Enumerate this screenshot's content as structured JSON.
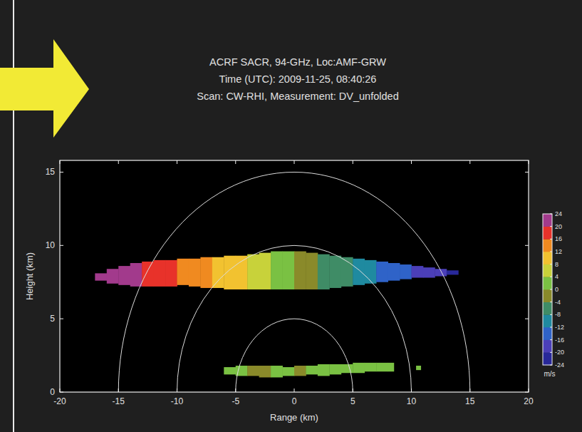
{
  "chart_data": {
    "type": "radar_rhi",
    "title_lines": [
      "ACRF SACR, 94-GHz, Loc:AMF-GRW",
      "Time (UTC): 2009-11-25, 08:40:26",
      "Scan: CW-RHI, Measurement: DV_unfolded"
    ],
    "x_label": "Range (km)",
    "y_label": "Height (km)",
    "xlim": [
      -20,
      20
    ],
    "xticks": [
      -20,
      -15,
      -10,
      -5,
      0,
      5,
      10,
      15,
      20
    ],
    "ylim": [
      0,
      15.8
    ],
    "yticks": [
      0,
      5,
      10,
      15
    ],
    "range_rings": [
      5,
      10,
      15
    ],
    "colorbar": {
      "range": [
        -24,
        24
      ],
      "ticks": [
        24,
        20,
        16,
        12,
        8,
        4,
        0,
        -4,
        -8,
        -12,
        -16,
        -20,
        -24
      ],
      "label": "m/s",
      "colors": [
        "#28289a",
        "#4b3fb8",
        "#2f63c8",
        "#1f8aa0",
        "#3f8c66",
        "#8a8a2a",
        "#7ac143",
        "#c8d23a",
        "#f2c230",
        "#f08a20",
        "#e8322a",
        "#a23a8c"
      ]
    },
    "layers": [
      {
        "edges": [
          -17,
          -16,
          -15,
          -14,
          -13,
          -12,
          -11,
          -10,
          -9,
          -8,
          -7,
          -6,
          -5,
          -4,
          -3,
          -2,
          -1,
          0,
          1,
          2,
          3,
          4,
          5,
          6,
          7,
          8,
          9,
          10,
          11,
          12,
          13,
          14
        ],
        "values": [
          22,
          21,
          21,
          20,
          19,
          18,
          17,
          15,
          14,
          13,
          11,
          9,
          8,
          6,
          5,
          2,
          1,
          -2,
          -3,
          -5,
          -6,
          -8,
          -10,
          -11,
          -13,
          -14,
          -16,
          -17,
          -19,
          -20,
          -22
        ],
        "base": [
          7.6,
          7.4,
          7.3,
          7.2,
          7.2,
          7.2,
          7.2,
          7.3,
          7.2,
          7.1,
          7.1,
          7.0,
          7.0,
          7.0,
          7.0,
          7.0,
          7.0,
          7.0,
          7.0,
          7.0,
          7.1,
          7.2,
          7.3,
          7.4,
          7.5,
          7.6,
          7.7,
          7.8,
          7.8,
          7.9,
          8.0
        ],
        "top": [
          8.1,
          8.4,
          8.6,
          8.8,
          8.9,
          9.0,
          9.0,
          9.1,
          9.1,
          9.2,
          9.2,
          9.3,
          9.3,
          9.4,
          9.5,
          9.6,
          9.6,
          9.6,
          9.5,
          9.4,
          9.3,
          9.2,
          9.1,
          9.0,
          8.9,
          8.8,
          8.7,
          8.6,
          8.5,
          8.4,
          8.3
        ]
      },
      {
        "edges": [
          -6,
          -5,
          -4,
          -3,
          -2,
          -1,
          0,
          1,
          2,
          3,
          4,
          5,
          6,
          7,
          8,
          8.5
        ],
        "values": [
          1,
          1,
          -1,
          -2,
          1,
          0,
          -1,
          1,
          2,
          1,
          1,
          2,
          1,
          1,
          2
        ],
        "base": [
          1.2,
          1.1,
          1.1,
          1.0,
          1.0,
          1.1,
          1.1,
          1.2,
          1.1,
          1.2,
          1.3,
          1.3,
          1.4,
          1.4,
          1.4
        ],
        "top": [
          1.7,
          1.8,
          1.8,
          1.8,
          1.8,
          1.7,
          1.8,
          1.8,
          1.9,
          1.9,
          1.9,
          2.0,
          2.0,
          2.0,
          2.0
        ]
      },
      {
        "edges": [
          10.4,
          10.8
        ],
        "values": [
          1
        ],
        "base": [
          1.5
        ],
        "top": [
          1.8
        ]
      }
    ]
  }
}
